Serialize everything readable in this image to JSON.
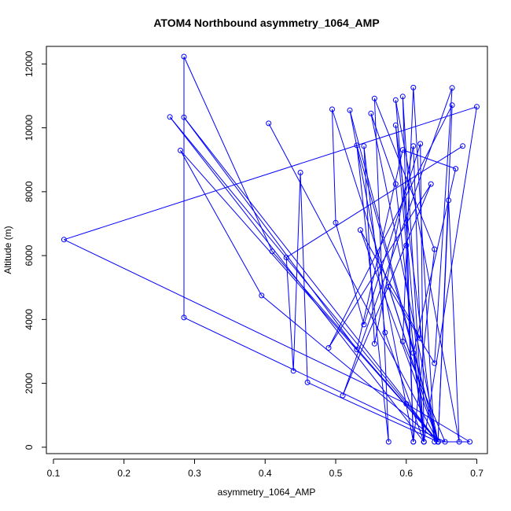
{
  "chart_data": {
    "type": "scatter",
    "title": "ATOM4 Northbound asymmetry_1064_AMP",
    "xlabel": "asymmetry_1064_AMP",
    "ylabel": "Altitude (m)",
    "xlim": [
      0.09,
      0.715
    ],
    "ylim": [
      -200,
      12550
    ],
    "xticks": [
      0.1,
      0.2,
      0.3,
      0.4,
      0.5,
      0.6,
      0.7
    ],
    "xtick_labels": [
      "0.1",
      "0.2",
      "0.3",
      "0.4",
      "0.5",
      "0.6",
      "0.7"
    ],
    "yticks": [
      0,
      2000,
      4000,
      6000,
      8000,
      10000,
      12000
    ],
    "ytick_labels": [
      "0",
      "2000",
      "4000",
      "6000",
      "8000",
      "10000",
      "12000"
    ],
    "grid": false,
    "legend": "none",
    "point_style": "open-circle",
    "line_color": "#0000ff",
    "series": [
      {
        "values": [
          [
            0.68,
            9430
          ],
          [
            0.43,
            5940
          ],
          [
            0.44,
            2390
          ],
          [
            0.45,
            8600
          ],
          [
            0.46,
            2030
          ],
          [
            0.645,
            170
          ],
          [
            0.53,
            9450
          ],
          [
            0.575,
            170
          ],
          [
            0.555,
            10920
          ],
          [
            0.64,
            6200
          ],
          [
            0.61,
            170
          ],
          [
            0.52,
            10550
          ],
          [
            0.645,
            170
          ],
          [
            0.66,
            7730
          ],
          [
            0.675,
            170
          ],
          [
            0.585,
            10870
          ],
          [
            0.625,
            170
          ],
          [
            0.62,
            9500
          ],
          [
            0.54,
            3840
          ],
          [
            0.5,
            7030
          ],
          [
            0.495,
            10580
          ],
          [
            0.645,
            170
          ],
          [
            0.665,
            10710
          ],
          [
            0.49,
            3110
          ],
          [
            0.635,
            8240
          ],
          [
            0.51,
            1620
          ],
          [
            0.665,
            11250
          ],
          [
            0.64,
            2630
          ],
          [
            0.575,
            5020
          ],
          [
            0.645,
            170
          ],
          [
            0.69,
            170
          ],
          [
            0.6,
            1360
          ],
          [
            0.115,
            6500
          ],
          [
            0.7,
            10660
          ],
          [
            0.625,
            170
          ],
          [
            0.57,
            3590
          ],
          [
            0.54,
            9430
          ],
          [
            0.555,
            3240
          ],
          [
            0.61,
            9430
          ],
          [
            0.62,
            3410
          ],
          [
            0.535,
            6800
          ],
          [
            0.645,
            170
          ],
          [
            0.55,
            10450
          ],
          [
            0.585,
            8240
          ],
          [
            0.625,
            170
          ],
          [
            0.595,
            10980
          ],
          [
            0.61,
            170
          ],
          [
            0.6,
            6320
          ],
          [
            0.585,
            10080
          ],
          [
            0.64,
            170
          ],
          [
            0.61,
            11260
          ],
          [
            0.595,
            3310
          ],
          [
            0.655,
            170
          ],
          [
            0.285,
            4060
          ],
          [
            0.285,
            12230
          ],
          [
            0.41,
            6130
          ],
          [
            0.645,
            170
          ],
          [
            0.285,
            10330
          ],
          [
            0.53,
            3060
          ],
          [
            0.595,
            9310
          ],
          [
            0.67,
            8720
          ],
          [
            0.61,
            2950
          ],
          [
            0.625,
            170
          ],
          [
            0.265,
            10340
          ],
          [
            0.645,
            170
          ],
          [
            0.28,
            9290
          ],
          [
            0.395,
            4750
          ],
          [
            0.645,
            170
          ],
          [
            0.405,
            10140
          ]
        ]
      }
    ]
  }
}
